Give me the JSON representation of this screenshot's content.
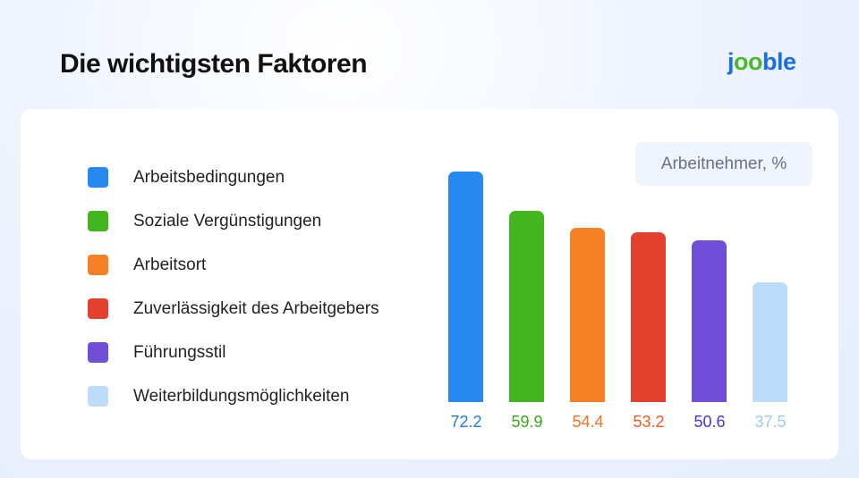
{
  "header": {
    "title": "Die wichtigsten Faktoren",
    "logo": "jooble"
  },
  "chart_data": {
    "type": "bar",
    "title": "Die wichtigsten Faktoren",
    "series_label": "Arbeitnehmer, %",
    "categories": [
      "Arbeitsbedingungen",
      "Soziale Vergünstigungen",
      "Arbeitsort",
      "Zuverlässigkeit des Arbeitgebers",
      "Führungsstil",
      "Weiterbildungsmöglichkeiten"
    ],
    "values": [
      72.2,
      59.9,
      54.4,
      53.2,
      50.6,
      37.5
    ],
    "labels": [
      "72.2",
      "59.9",
      "54.4",
      "53.2",
      "50.6",
      "37.5"
    ],
    "colors": [
      "#2589ef",
      "#43b51f",
      "#f58025",
      "#e4402e",
      "#704ed8",
      "#bcdcfa"
    ],
    "label_colors": [
      "#1f7ae6",
      "#3aa91a",
      "#f47321",
      "#f05a22",
      "#4d2fd3",
      "#9cc8f5"
    ],
    "ylim": [
      0,
      80
    ],
    "legend": "left",
    "grid": false
  }
}
